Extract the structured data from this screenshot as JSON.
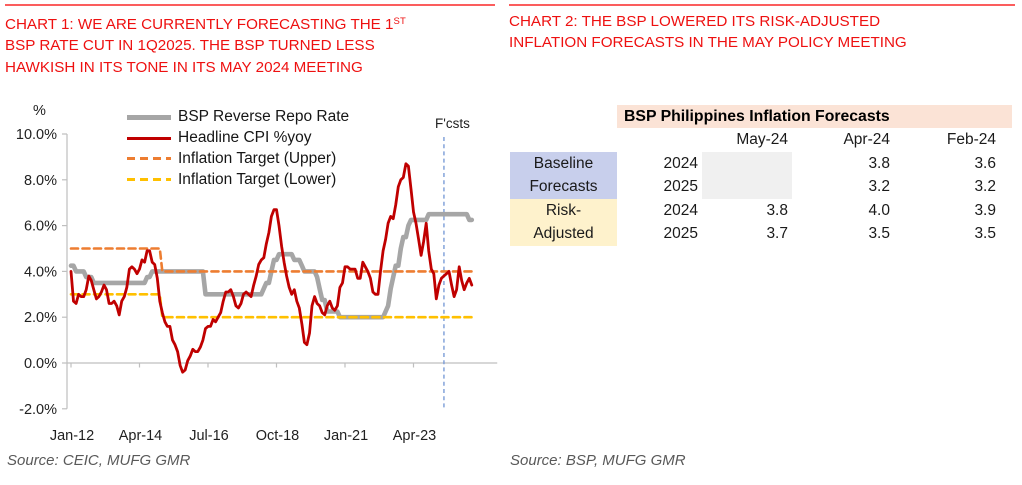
{
  "chart1": {
    "title": {
      "line1_pre": "CHART 1: WE ARE CURRENTLY FORECASTING THE 1",
      "line1_sup": "ST",
      "line2": "BSP RATE CUT IN 1Q2025. THE BSP TURNED LESS",
      "line3": "HAWKISH IN ITS TONE IN ITS MAY 2024 MEETING"
    },
    "source": "Source: CEIC, MUFG GMR",
    "accent_red": "#ee1010"
  },
  "chart2": {
    "title": {
      "line1": "CHART 2: THE BSP LOWERED ITS RISK-ADJUSTED",
      "line2": "INFLATION FORECASTS IN THE MAY POLICY MEETING"
    },
    "source": "Source: BSP, MUFG GMR",
    "table": {
      "title": "BSP Philippines Inflation Forecasts",
      "col_headers": [
        "May-24",
        "Apr-24",
        "Feb-24"
      ],
      "rows": [
        {
          "label": "Baseline",
          "year": "2024",
          "may": "",
          "apr": "3.8",
          "feb": "3.6"
        },
        {
          "label": "Forecasts",
          "year": "2025",
          "may": "",
          "apr": "3.2",
          "feb": "3.2"
        },
        {
          "label": "Risk-",
          "year": "2024",
          "may": "3.8",
          "apr": "4.0",
          "feb": "3.9"
        },
        {
          "label": "Adjusted",
          "year": "2025",
          "may": "3.7",
          "apr": "3.5",
          "feb": "3.5"
        }
      ],
      "colors": {
        "header_bg": "#FBE3D6",
        "baseline_bg": "#C8CFEC",
        "risk_bg": "#FEF2CC",
        "blank_bg": "#F0F0F0"
      }
    }
  },
  "chart_data": [
    {
      "type": "line",
      "title": "We are currently forecasting the 1st BSP rate cut in 1Q2025; the BSP turned less hawkish in its tone in its May 2024 meeting",
      "ylabel": "%",
      "ylim": [
        -2,
        10
      ],
      "y_tick_values": [
        10,
        8,
        6,
        4,
        2,
        0,
        -2
      ],
      "y_tick_labels": [
        "10.0%",
        "8.0%",
        "6.0%",
        "4.0%",
        "2.0%",
        "0.0%",
        "-2.0%"
      ],
      "x_start": "Jan-2012",
      "x_end": "Mar-2025",
      "axis_end_month": 168,
      "tick_months": [
        0,
        27,
        54,
        81,
        108,
        135
      ],
      "x_tick_labels": [
        "Jan-12",
        "Apr-14",
        "Jul-16",
        "Oct-18",
        "Jan-21",
        "Apr-23"
      ],
      "grid": false,
      "legend_position": "top-left",
      "forecast_divider": {
        "label": "F'csts",
        "month_index": 147,
        "approx_date": "Apr-24",
        "color": "#7B9CD7"
      },
      "series": [
        {
          "name": "BSP Reverse Repo Rate",
          "color": "#A6A6A6",
          "style": "solid",
          "width": 4.6,
          "values": [
            4.25,
            4.25,
            4,
            4,
            4,
            4,
            3.75,
            3.75,
            3.75,
            3.5,
            3.5,
            3.5,
            3.5,
            3.5,
            3.5,
            3.5,
            3.5,
            3.5,
            3.5,
            3.5,
            3.5,
            3.5,
            3.5,
            3.5,
            3.5,
            3.5,
            3.5,
            3.5,
            3.5,
            3.5,
            3.75,
            3.75,
            4,
            4,
            4,
            4,
            4,
            4,
            4,
            4,
            4,
            4,
            4,
            4,
            4,
            4,
            4,
            4,
            4,
            4,
            4,
            4,
            4,
            3,
            3,
            3,
            3,
            3,
            3,
            3,
            3,
            3,
            3,
            3,
            3,
            3,
            3,
            3,
            3,
            3,
            3,
            3,
            3,
            3,
            3,
            3,
            3.25,
            3.5,
            3.5,
            4,
            4.5,
            4.5,
            4.75,
            4.75,
            4.75,
            4.75,
            4.75,
            4.75,
            4.5,
            4.5,
            4.5,
            4.25,
            4,
            4,
            4,
            4,
            4,
            3.75,
            3.25,
            2.75,
            2.75,
            2.25,
            2.25,
            2.25,
            2.25,
            2.25,
            2,
            2,
            2,
            2,
            2,
            2,
            2,
            2,
            2,
            2,
            2,
            2,
            2,
            2,
            2,
            2,
            2,
            2,
            2.25,
            2.5,
            3.25,
            3.75,
            4.25,
            4.25,
            5,
            5.5,
            5.5,
            6,
            6.25,
            6.25,
            6.25,
            6.25,
            6.25,
            6.25,
            6.25,
            6.5,
            6.5,
            6.5,
            6.5,
            6.5,
            6.5,
            6.5,
            6.5,
            6.5,
            6.5,
            6.5,
            6.5,
            6.5,
            6.5,
            6.5,
            6.5,
            6.25,
            6.25
          ]
        },
        {
          "name": "Headline CPI %yoy",
          "color": "#C00000",
          "style": "solid",
          "width": 2.8,
          "values": [
            4.0,
            2.7,
            2.6,
            3.0,
            2.9,
            2.9,
            3.2,
            3.8,
            3.6,
            3.2,
            2.8,
            2.9,
            3.1,
            3.4,
            3.2,
            2.6,
            2.6,
            2.7,
            2.5,
            2.1,
            2.7,
            2.9,
            3.3,
            4.1,
            4.2,
            4.1,
            3.9,
            4.1,
            4.5,
            4.4,
            4.9,
            4.9,
            4.4,
            4.3,
            3.7,
            2.7,
            2.2,
            1.8,
            1.6,
            1.6,
            1.0,
            0.8,
            0.5,
            -0.1,
            -0.4,
            -0.3,
            0.1,
            0.3,
            0.6,
            0.5,
            0.5,
            0.7,
            1.0,
            1.5,
            1.6,
            1.6,
            1.9,
            1.8,
            2.0,
            2.2,
            2.7,
            3.1,
            3.1,
            3.2,
            2.9,
            2.5,
            2.4,
            2.6,
            3.0,
            3.1,
            3.0,
            2.9,
            3.4,
            3.8,
            4.3,
            4.5,
            4.6,
            5.2,
            5.7,
            6.4,
            6.7,
            6.7,
            6.0,
            5.1,
            4.4,
            3.8,
            3.3,
            3.0,
            3.2,
            2.7,
            2.4,
            1.7,
            0.9,
            0.8,
            1.3,
            2.5,
            2.9,
            2.6,
            2.5,
            2.2,
            2.1,
            2.5,
            2.7,
            2.4,
            2.3,
            2.5,
            3.3,
            3.5,
            4.2,
            4.2,
            4.1,
            4.1,
            4.1,
            3.7,
            3.7,
            4.4,
            4.2,
            4.0,
            3.7,
            3.1,
            3.0,
            3.0,
            4.0,
            4.9,
            5.4,
            6.1,
            6.4,
            6.3,
            6.9,
            7.7,
            8.0,
            8.1,
            8.7,
            8.6,
            7.6,
            6.6,
            6.1,
            5.4,
            4.7,
            5.3,
            6.1,
            4.9,
            4.1,
            3.9,
            2.8,
            3.4,
            3.7,
            3.8,
            3.9,
            4.0,
            3.4,
            2.9,
            3.2,
            4.2,
            3.6,
            3.2,
            3.5,
            3.7,
            3.4
          ]
        },
        {
          "name": "Inflation Target (Upper)",
          "color": "#ED7D31",
          "style": "dashed",
          "width": 2.6,
          "segments": [
            {
              "from_month": 0,
              "to_month": 35,
              "value": 5.0
            },
            {
              "from_month": 36,
              "to_month": 158,
              "value": 4.0
            }
          ]
        },
        {
          "name": "Inflation Target (Lower)",
          "color": "#FFC000",
          "style": "dashed",
          "width": 2.6,
          "segments": [
            {
              "from_month": 0,
              "to_month": 35,
              "value": 3.0
            },
            {
              "from_month": 36,
              "to_month": 158,
              "value": 2.0
            }
          ]
        }
      ]
    },
    {
      "type": "table",
      "title": "BSP Philippines Inflation Forecasts",
      "columns": [
        "",
        "",
        "May-24",
        "Apr-24",
        "Feb-24"
      ],
      "rows": [
        [
          "Baseline Forecasts",
          "2024",
          null,
          3.8,
          3.6
        ],
        [
          "Baseline Forecasts",
          "2025",
          null,
          3.2,
          3.2
        ],
        [
          "Risk-Adjusted",
          "2024",
          3.8,
          4.0,
          3.9
        ],
        [
          "Risk-Adjusted",
          "2025",
          3.7,
          3.5,
          3.5
        ]
      ]
    }
  ]
}
